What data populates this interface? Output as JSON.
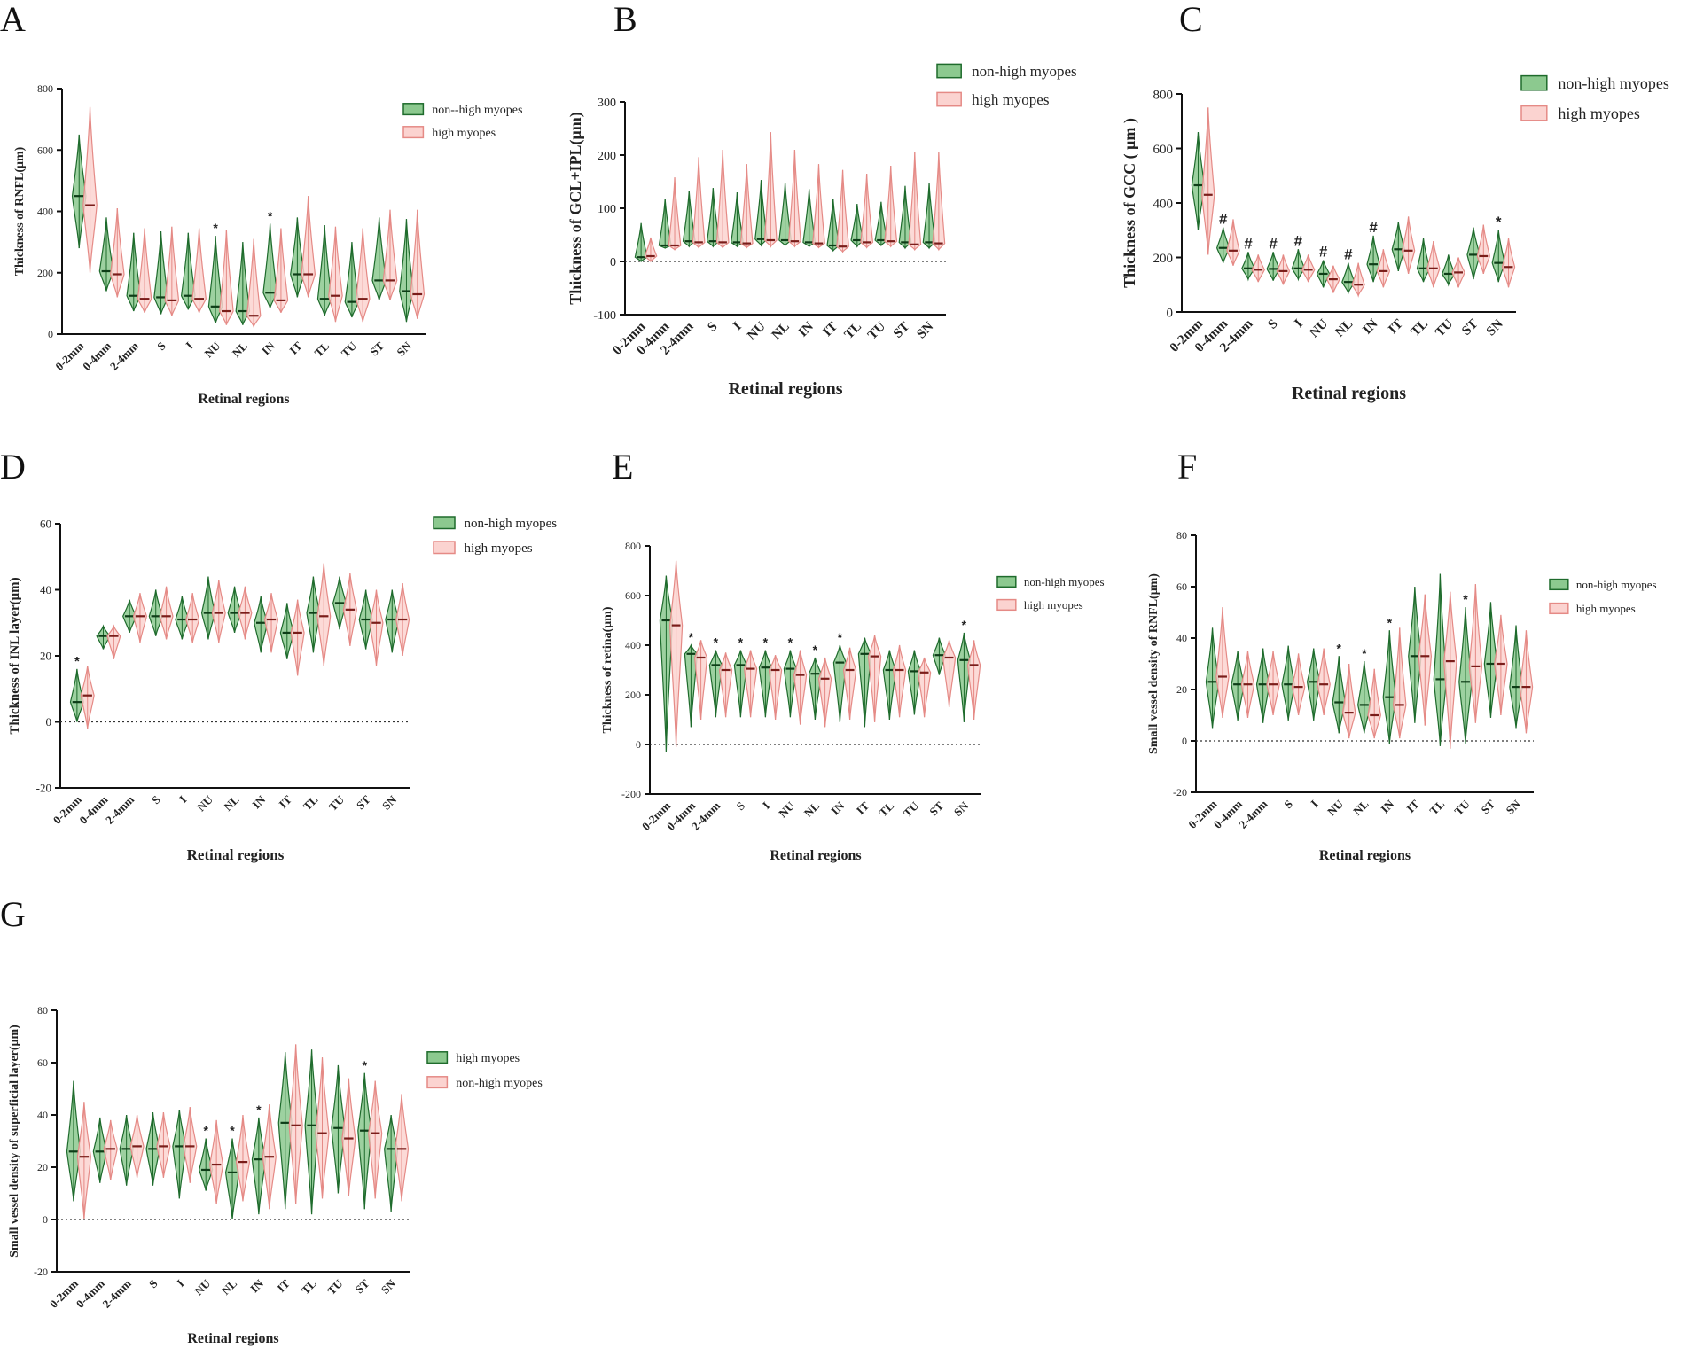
{
  "figure": {
    "colors": {
      "green_fill": "#8cc98f",
      "green_stroke": "#1e6b2c",
      "pink_fill": "#fbd3d0",
      "pink_stroke": "#e58a86",
      "axis": "#111111"
    }
  },
  "chart_data": [
    {
      "panel": "A",
      "type": "violin",
      "title": "",
      "xlabel": "Retinal regions",
      "ylabel": "Thickness of RNFL(μm)",
      "ylim": [
        0,
        800
      ],
      "yticks": [
        0,
        200,
        400,
        600,
        800
      ],
      "zero_line": false,
      "categories": [
        "0-2mm",
        "0-4mm",
        "2-4mm",
        "S",
        "I",
        "NU",
        "NL",
        "IN",
        "IT",
        "TL",
        "TU",
        "ST",
        "SN"
      ],
      "significance": [
        "",
        "",
        "",
        "",
        "",
        "*",
        "",
        "*",
        "",
        "",
        "",
        "",
        ""
      ],
      "legend": [
        "non--high myopes",
        "high myopes"
      ],
      "series": [
        {
          "name": "non--high myopes",
          "color": "green",
          "median": [
            450,
            205,
            125,
            120,
            125,
            90,
            75,
            135,
            195,
            115,
            105,
            175,
            140
          ],
          "min": [
            280,
            140,
            75,
            65,
            80,
            35,
            30,
            85,
            120,
            60,
            55,
            110,
            40
          ],
          "max": [
            650,
            380,
            330,
            335,
            330,
            320,
            300,
            360,
            380,
            355,
            300,
            380,
            375
          ]
        },
        {
          "name": "high myopes",
          "color": "pink",
          "median": [
            420,
            195,
            115,
            110,
            115,
            75,
            60,
            110,
            195,
            125,
            115,
            175,
            130
          ],
          "min": [
            200,
            120,
            70,
            60,
            70,
            30,
            25,
            70,
            120,
            40,
            40,
            110,
            50
          ],
          "max": [
            740,
            410,
            345,
            350,
            345,
            340,
            310,
            345,
            450,
            350,
            345,
            405,
            405
          ]
        }
      ]
    },
    {
      "panel": "B",
      "type": "violin",
      "title": "",
      "xlabel": "Retinal regions",
      "ylabel": "Thickness of GCL+IPL(μm)",
      "ylim": [
        -100,
        300
      ],
      "yticks": [
        -100,
        0,
        100,
        200,
        300
      ],
      "zero_line": true,
      "categories": [
        "0-2mm",
        "0-4mm",
        "2-4mm",
        "S",
        "I",
        "NU",
        "NL",
        "IN",
        "IT",
        "TL",
        "TU",
        "ST",
        "SN"
      ],
      "significance": [
        "",
        "",
        "",
        "",
        "",
        "",
        "",
        "",
        "",
        "",
        "",
        "",
        ""
      ],
      "legend": [
        "non-high myopes",
        "high myopes"
      ],
      "series": [
        {
          "name": "non-high myopes",
          "color": "green",
          "median": [
            8,
            30,
            38,
            38,
            36,
            42,
            40,
            36,
            30,
            40,
            40,
            36,
            36
          ],
          "min": [
            0,
            25,
            28,
            28,
            28,
            30,
            30,
            28,
            20,
            28,
            30,
            25,
            25
          ],
          "max": [
            72,
            118,
            133,
            138,
            130,
            153,
            148,
            136,
            118,
            108,
            112,
            142,
            147
          ]
        },
        {
          "name": "high myopes",
          "color": "pink",
          "median": [
            10,
            30,
            36,
            36,
            34,
            40,
            38,
            34,
            28,
            36,
            38,
            32,
            34
          ],
          "min": [
            0,
            22,
            26,
            26,
            26,
            28,
            28,
            26,
            18,
            26,
            28,
            22,
            22
          ],
          "max": [
            45,
            158,
            196,
            210,
            183,
            243,
            210,
            183,
            172,
            165,
            180,
            205,
            205
          ]
        }
      ]
    },
    {
      "panel": "C",
      "type": "violin",
      "title": "",
      "xlabel": "Retinal regions",
      "ylabel": "Thickness of GCC ( μm )",
      "ylim": [
        0,
        800
      ],
      "yticks": [
        0,
        200,
        400,
        600,
        800
      ],
      "zero_line": false,
      "categories": [
        "0-2mm",
        "0-4mm",
        "2-4mm",
        "S",
        "I",
        "NU",
        "NL",
        "IN",
        "IT",
        "TL",
        "TU",
        "ST",
        "SN"
      ],
      "significance": [
        "",
        "#",
        "#",
        "#",
        "#",
        "#",
        "#",
        "#",
        "",
        "",
        "",
        "",
        "*"
      ],
      "legend": [
        "non-high myopes",
        "high myopes"
      ],
      "series": [
        {
          "name": "non-high myopes",
          "color": "green",
          "median": [
            465,
            235,
            160,
            158,
            160,
            140,
            110,
            175,
            230,
            160,
            140,
            210,
            180
          ],
          "min": [
            300,
            180,
            120,
            115,
            120,
            90,
            70,
            110,
            150,
            110,
            100,
            120,
            110
          ],
          "max": [
            660,
            310,
            220,
            220,
            230,
            190,
            180,
            280,
            330,
            270,
            210,
            310,
            300
          ]
        },
        {
          "name": "high myopes",
          "color": "pink",
          "median": [
            430,
            225,
            155,
            150,
            155,
            120,
            100,
            150,
            225,
            160,
            145,
            205,
            165
          ],
          "min": [
            210,
            170,
            110,
            100,
            110,
            70,
            60,
            90,
            140,
            90,
            90,
            140,
            90
          ],
          "max": [
            750,
            340,
            210,
            210,
            210,
            170,
            180,
            230,
            350,
            260,
            200,
            320,
            270
          ]
        }
      ]
    },
    {
      "panel": "D",
      "type": "violin",
      "title": "",
      "xlabel": "Retinal regions",
      "ylabel": "Thickness of INL layer(μm)",
      "ylim": [
        -20,
        60
      ],
      "yticks": [
        -20,
        0,
        20,
        40,
        60
      ],
      "zero_line": true,
      "categories": [
        "0-2mm",
        "0-4mm",
        "2-4mm",
        "S",
        "I",
        "NU",
        "NL",
        "IN",
        "IT",
        "TL",
        "TU",
        "ST",
        "SN"
      ],
      "significance": [
        "*",
        "",
        "",
        "",
        "",
        "",
        "",
        "",
        "",
        "",
        "",
        "",
        ""
      ],
      "legend": [
        "non-high myopes",
        "high myopes"
      ],
      "series": [
        {
          "name": "non-high myopes",
          "color": "green",
          "median": [
            6,
            26,
            32,
            32,
            31,
            33,
            33,
            30,
            27,
            33,
            36,
            31,
            31
          ],
          "min": [
            0,
            22,
            27,
            26,
            25,
            25,
            27,
            21,
            19,
            21,
            28,
            22,
            21
          ],
          "max": [
            16,
            29,
            37,
            40,
            38,
            44,
            41,
            38,
            36,
            44,
            44,
            40,
            40
          ]
        },
        {
          "name": "high myopes",
          "color": "pink",
          "median": [
            8,
            26,
            32,
            32,
            31,
            33,
            33,
            31,
            27,
            32,
            34,
            30,
            31
          ],
          "min": [
            -2,
            19,
            24,
            25,
            24,
            24,
            25,
            21,
            14,
            17,
            23,
            17,
            20
          ],
          "max": [
            17,
            29,
            39,
            41,
            39,
            43,
            41,
            39,
            37,
            48,
            45,
            40,
            42
          ]
        }
      ]
    },
    {
      "panel": "E",
      "type": "violin",
      "title": "",
      "xlabel": "Retinal regions",
      "ylabel": "Thickness of  retina(μm)",
      "ylim": [
        -200,
        800
      ],
      "yticks": [
        -200,
        0,
        200,
        400,
        600,
        800
      ],
      "zero_line": true,
      "categories": [
        "0-2mm",
        "0-4mm",
        "2-4mm",
        "S",
        "I",
        "NU",
        "NL",
        "IN",
        "IT",
        "TL",
        "TU",
        "ST",
        "SN"
      ],
      "significance": [
        "",
        "*",
        "*",
        "*",
        "*",
        "*",
        "*",
        "*",
        "",
        "",
        "",
        "",
        "*"
      ],
      "legend": [
        "non-high myopes",
        "high myopes"
      ],
      "series": [
        {
          "name": "non-high myopes",
          "color": "green",
          "median": [
            500,
            365,
            320,
            320,
            310,
            305,
            285,
            330,
            365,
            300,
            295,
            360,
            340
          ],
          "min": [
            -30,
            70,
            110,
            110,
            110,
            110,
            100,
            90,
            70,
            100,
            120,
            280,
            90
          ],
          "max": [
            680,
            400,
            380,
            380,
            380,
            380,
            350,
            400,
            430,
            380,
            380,
            430,
            450
          ]
        },
        {
          "name": "high myopes",
          "color": "pink",
          "median": [
            480,
            350,
            300,
            305,
            300,
            280,
            265,
            300,
            355,
            300,
            290,
            350,
            320
          ],
          "min": [
            -10,
            100,
            110,
            110,
            100,
            80,
            70,
            100,
            90,
            110,
            110,
            150,
            100
          ],
          "max": [
            740,
            420,
            370,
            380,
            360,
            380,
            350,
            390,
            440,
            400,
            350,
            420,
            420
          ]
        }
      ]
    },
    {
      "panel": "F",
      "type": "violin",
      "title": "",
      "xlabel": "Retinal regions",
      "ylabel": "Small vessel density of RNFL(μm)",
      "ylim": [
        -20,
        80
      ],
      "yticks": [
        -20,
        0,
        20,
        40,
        60,
        80
      ],
      "zero_line": true,
      "categories": [
        "0-2mm",
        "0-4mm",
        "2-4mm",
        "S",
        "I",
        "NU",
        "NL",
        "IN",
        "IT",
        "TL",
        "TU",
        "ST",
        "SN"
      ],
      "significance": [
        "",
        "",
        "",
        "",
        "",
        "*",
        "*",
        "*",
        "",
        "",
        "*",
        "",
        ""
      ],
      "legend": [
        "non-high myopes",
        "high myopes"
      ],
      "series": [
        {
          "name": "non-high myopes",
          "color": "green",
          "median": [
            23,
            22,
            22,
            22,
            23,
            15,
            14,
            17,
            33,
            24,
            23,
            30,
            21
          ],
          "min": [
            5,
            8,
            7,
            8,
            8,
            3,
            3,
            -1,
            7,
            -2,
            -1,
            9,
            5
          ],
          "max": [
            44,
            35,
            36,
            37,
            36,
            33,
            31,
            43,
            60,
            65,
            52,
            54,
            45
          ]
        },
        {
          "name": "high myopes",
          "color": "pink",
          "median": [
            25,
            22,
            22,
            21,
            22,
            11,
            10,
            14,
            33,
            31,
            29,
            30,
            21
          ],
          "min": [
            9,
            9,
            10,
            10,
            10,
            1,
            1,
            1,
            6,
            -3,
            7,
            10,
            3
          ],
          "max": [
            52,
            35,
            35,
            34,
            36,
            30,
            28,
            44,
            57,
            58,
            61,
            49,
            43
          ]
        }
      ]
    },
    {
      "panel": "G",
      "type": "violin",
      "title": "",
      "xlabel": "Retinal regions",
      "ylabel": "Small vessel density of superficial layer(μm)",
      "ylim": [
        -20,
        80
      ],
      "yticks": [
        -20,
        0,
        20,
        40,
        60,
        80
      ],
      "zero_line": true,
      "categories": [
        "0-2mm",
        "0-4mm",
        "2-4mm",
        "S",
        "I",
        "NU",
        "NL",
        "IN",
        "IT",
        "TL",
        "TU",
        "ST",
        "SN"
      ],
      "significance": [
        "",
        "",
        "",
        "",
        "",
        "*",
        "*",
        "*",
        "",
        "",
        "",
        "*",
        ""
      ],
      "legend": [
        "high myopes",
        "non-high myopes"
      ],
      "series": [
        {
          "name": "high myopes",
          "color": "green",
          "median": [
            26,
            26,
            27,
            27,
            28,
            19,
            18,
            23,
            37,
            36,
            35,
            34,
            27
          ],
          "min": [
            7,
            14,
            13,
            13,
            8,
            11,
            0,
            2,
            4,
            2,
            10,
            4,
            3
          ],
          "max": [
            53,
            39,
            40,
            41,
            42,
            31,
            31,
            39,
            64,
            65,
            59,
            56,
            40
          ]
        },
        {
          "name": "non-high myopes",
          "color": "pink",
          "median": [
            24,
            27,
            28,
            28,
            28,
            21,
            22,
            24,
            36,
            33,
            31,
            33,
            27
          ],
          "min": [
            0,
            15,
            16,
            16,
            14,
            6,
            7,
            4,
            6,
            8,
            9,
            8,
            7
          ],
          "max": [
            45,
            38,
            40,
            41,
            43,
            38,
            40,
            44,
            67,
            62,
            54,
            53,
            48
          ]
        }
      ]
    }
  ]
}
